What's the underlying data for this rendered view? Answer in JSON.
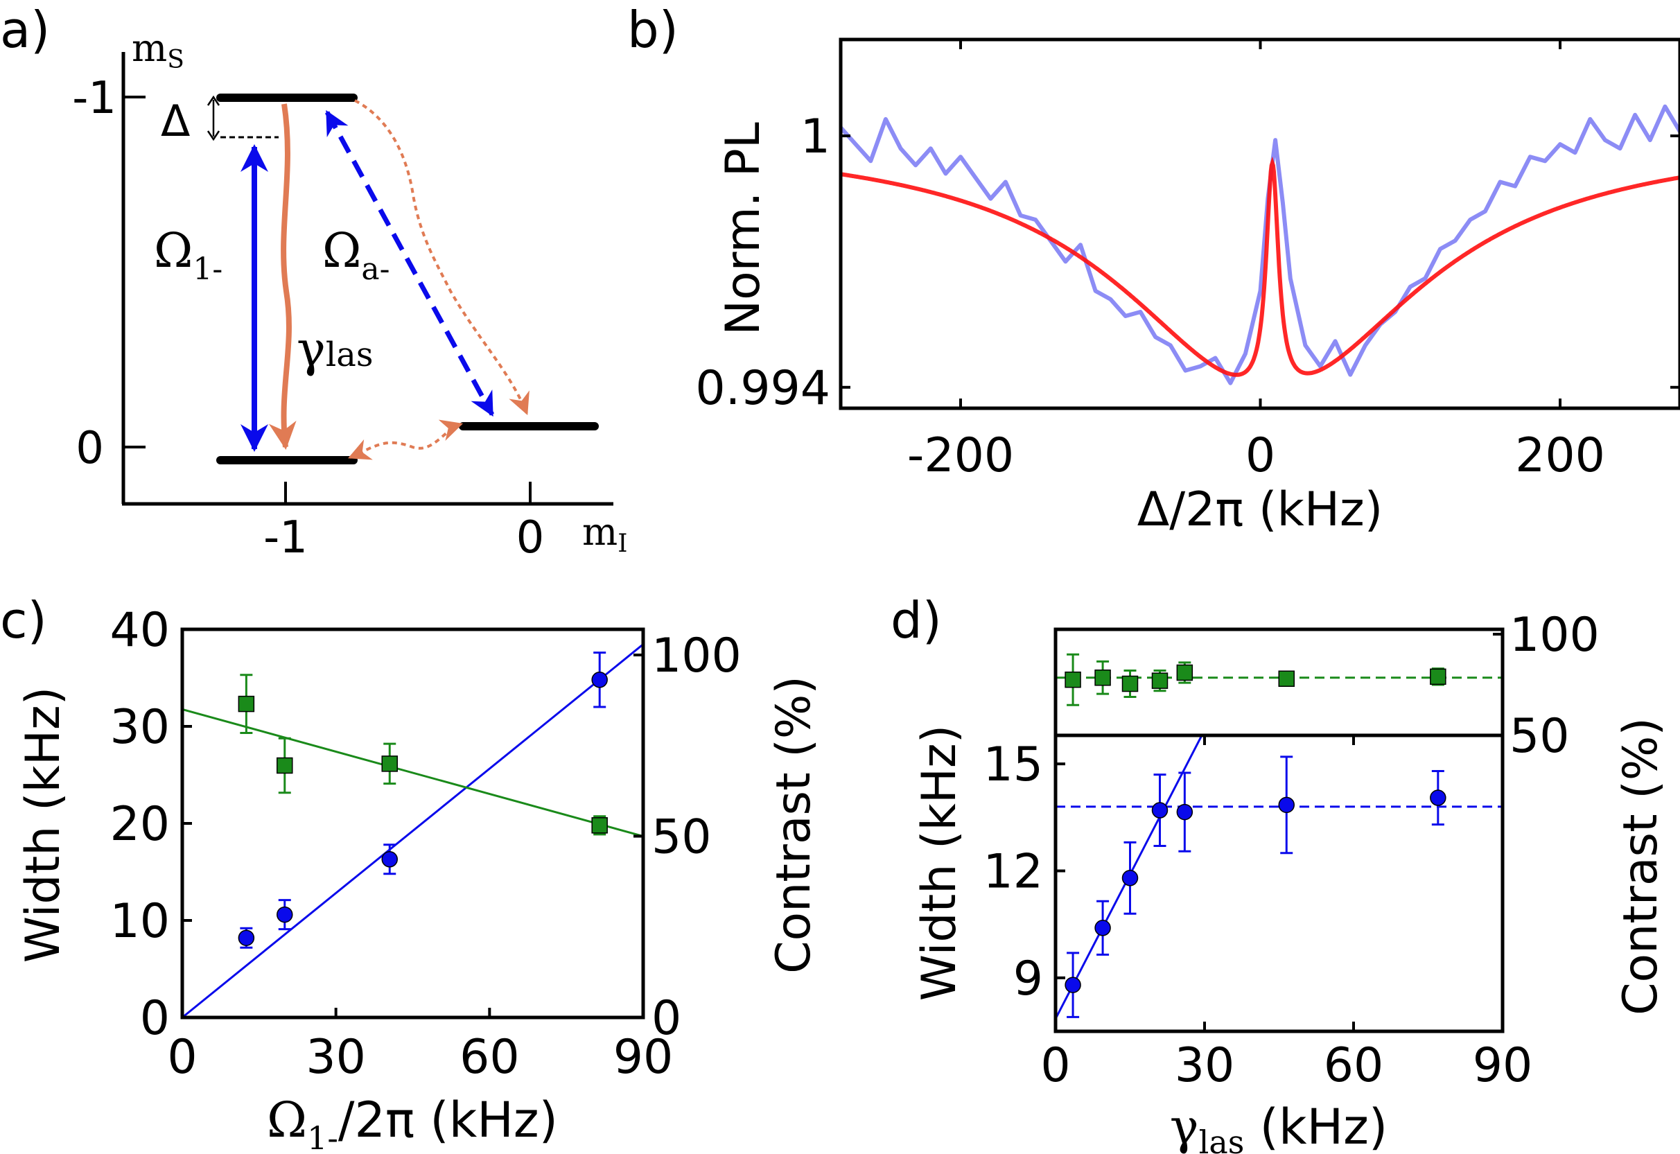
{
  "panel_labels": [
    "a)",
    "b)",
    "c)",
    "d)"
  ],
  "colors": {
    "blue": "#0a0aeb",
    "green": "#1a8a1a",
    "orange": "#e07b54",
    "spectrum": "#8c8cf5",
    "fit": "#ff1010"
  },
  "chart_data": [
    {
      "type": "diagram",
      "panel": "a)",
      "y_axis": {
        "label": "mS",
        "label_main": "m",
        "label_sub": "S",
        "ticks": [
          "-1",
          "0"
        ]
      },
      "x_axis": {
        "label": "mI",
        "label_main": "m",
        "label_sub": "I",
        "ticks": [
          "-1",
          "0"
        ]
      },
      "levels": [
        {
          "name": "mS=-1, mI=-1",
          "ms": -1,
          "mi": -1
        },
        {
          "name": "mS=0, mI=-1",
          "ms": 0,
          "mi": -1
        },
        {
          "name": "mS=0, mI=0",
          "ms": -0.06,
          "mi": 0
        }
      ],
      "annotations": {
        "delta": "Δ",
        "omega1_main": "Ω",
        "omega1_sub": "1-",
        "omegaa_main": "Ω",
        "omegaa_sub": "a-",
        "gamma_main": "γ",
        "gamma_sub": "las"
      }
    },
    {
      "type": "line",
      "panel": "b)",
      "xlabel": "Δ/2π (kHz)",
      "ylabel": "Norm. PL",
      "xlim": [
        -280,
        280
      ],
      "ylim": [
        0.9935,
        1.0023
      ],
      "xticks": [
        -200,
        0,
        200
      ],
      "yticks": [
        {
          "value": 0.994,
          "label": "0.994"
        },
        {
          "value": 1.0,
          "label": "1"
        }
      ],
      "series": [
        {
          "name": "data",
          "color": "#8c8cf5",
          "x": [
            -280,
            -270,
            -260,
            -250,
            -240,
            -230,
            -220,
            -210,
            -200,
            -190,
            -180,
            -170,
            -160,
            -150,
            -140,
            -130,
            -120,
            -110,
            -100,
            -90,
            -80,
            -70,
            -60,
            -50,
            -40,
            -30,
            -20,
            -10,
            0,
            5,
            10,
            15,
            20,
            30,
            40,
            50,
            60,
            70,
            80,
            90,
            100,
            110,
            120,
            130,
            140,
            150,
            160,
            170,
            180,
            190,
            200,
            210,
            220,
            230,
            240,
            250,
            260,
            270,
            280
          ],
          "y": [
            1.0002,
            0.9998,
            0.9994,
            1.0004,
            0.9997,
            0.9993,
            0.9997,
            0.9991,
            0.9995,
            0.999,
            0.9985,
            0.9989,
            0.9981,
            0.998,
            0.9975,
            0.997,
            0.9974,
            0.9963,
            0.9961,
            0.9957,
            0.9958,
            0.9952,
            0.995,
            0.9944,
            0.9945,
            0.9947,
            0.9941,
            0.9948,
            0.9963,
            0.9985,
            0.9999,
            0.9984,
            0.9966,
            0.995,
            0.9945,
            0.9951,
            0.9943,
            0.995,
            0.9955,
            0.9958,
            0.9964,
            0.9966,
            0.9973,
            0.9975,
            0.998,
            0.9982,
            0.9989,
            0.9988,
            0.9995,
            0.9994,
            0.9998,
            0.9996,
            1.0004,
            0.9999,
            0.9997,
            1.0005,
            0.9999,
            1.0007,
            1.0001
          ]
        },
        {
          "name": "fit",
          "color": "#ff1010",
          "model": "1 - 0.00615/(1+((x-7)/120)^2) + 0.0055/(1+((x-8)/5)^2)"
        }
      ]
    },
    {
      "type": "scatter",
      "panel": "c)",
      "xlabel": "Ω1-/2π (kHz)",
      "xlabel_main": "Ω",
      "xlabel_sub": "1-",
      "xlabel_rest": "/2π (kHz)",
      "ylabel": "Width (kHz)",
      "ylabel_right": "Contrast (%)",
      "xlim": [
        0,
        90
      ],
      "ylim": [
        0,
        40
      ],
      "ylim_right": [
        0,
        100
      ],
      "xticks": [
        0,
        30,
        60,
        90
      ],
      "yticks": [
        0,
        10,
        20,
        30,
        40
      ],
      "yticks_right": [
        0,
        50,
        100
      ],
      "series": [
        {
          "name": "width",
          "axis": "left",
          "color": "#0a0aeb",
          "marker": "circle",
          "x": [
            12.5,
            20,
            40.5,
            81.5
          ],
          "y": [
            8.2,
            10.6,
            16.3,
            34.8
          ],
          "err": [
            1.0,
            1.5,
            1.5,
            2.8
          ],
          "fit": {
            "type": "linear",
            "slope": 0.4273,
            "intercept": 0
          }
        },
        {
          "name": "contrast",
          "axis": "right",
          "color": "#1a8a1a",
          "marker": "square",
          "x": [
            12.5,
            20,
            40.5,
            81.5
          ],
          "y": [
            86.5,
            69.5,
            70.0,
            53.0
          ],
          "err": [
            8.0,
            7.5,
            5.5,
            2.5
          ],
          "fit": {
            "type": "linear",
            "slope": -0.3889,
            "intercept": 85
          }
        }
      ]
    },
    {
      "type": "scatter",
      "panel": "d)",
      "xlabel": "γlas (kHz)",
      "xlabel_main": "γ",
      "xlabel_sub": "las",
      "xlabel_rest": " (kHz)",
      "ylabel": "Width (kHz)",
      "ylabel_right": "Contrast (%)",
      "xlim": [
        0,
        90
      ],
      "ylim": [
        7.5,
        15.8
      ],
      "ylim_right": [
        50,
        100
      ],
      "xticks": [
        0,
        30,
        60,
        90
      ],
      "yticks": [
        9,
        12,
        15
      ],
      "yticks_right": [
        50,
        100
      ],
      "series": [
        {
          "name": "width",
          "axis": "left",
          "color": "#0a0aeb",
          "marker": "circle",
          "x": [
            3.5,
            9.5,
            15,
            21,
            26,
            46.5,
            77
          ],
          "y": [
            8.8,
            10.4,
            11.8,
            13.7,
            13.65,
            13.85,
            14.05
          ],
          "err": [
            0.9,
            0.75,
            1.0,
            1.0,
            1.1,
            1.35,
            0.75
          ],
          "fit": {
            "type": "linear",
            "slope": 0.27,
            "intercept": 7.85
          },
          "reference": 13.8
        },
        {
          "name": "contrast",
          "axis": "right",
          "color": "#1a8a1a",
          "marker": "square",
          "x": [
            3.5,
            9.5,
            15,
            21,
            26,
            46.5,
            77
          ],
          "y": [
            77.5,
            78.5,
            75.5,
            77.0,
            81.0,
            78.0,
            79.0
          ],
          "err": [
            12.5,
            8.0,
            6.5,
            5.0,
            5.0,
            3.5,
            4.0
          ],
          "reference": 78.5
        }
      ]
    }
  ]
}
